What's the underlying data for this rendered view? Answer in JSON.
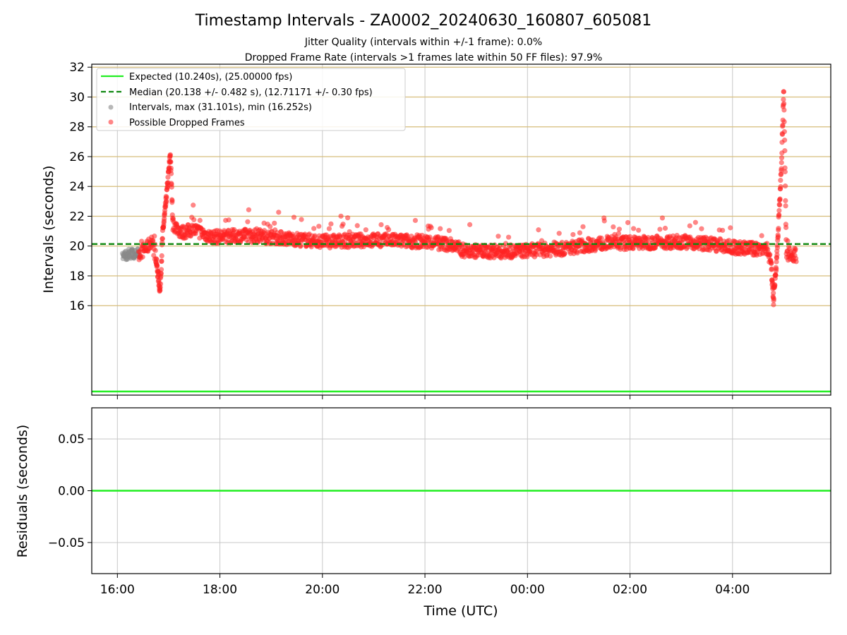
{
  "chart_data": {
    "type": "scatter",
    "title": "Timestamp Intervals - ZA0002_20240630_160807_605081",
    "subtitle_1": "Jitter Quality (intervals within +/-1 frame): 0.0%",
    "subtitle_2": "Dropped Frame Rate (intervals >1 frames late within 50 FF files): 97.9%",
    "xlabel": "Time (UTC)",
    "top_panel": {
      "ylabel": "Intervals (seconds)",
      "yticks": [
        "16",
        "18",
        "20",
        "22",
        "24",
        "26",
        "28",
        "30",
        "32"
      ],
      "ylim": [
        10.0,
        32.2
      ],
      "expected_interval": 10.24,
      "median_interval": 20.138,
      "grid": "horizontal-gold",
      "legend_position": "top-left",
      "legend": [
        {
          "label": "Expected (10.240s), (25.00000 fps)",
          "kind": "solid-line",
          "color": "#22ee22"
        },
        {
          "label": "Median (20.138 +/- 0.482 s), (12.71171 +/- 0.30 fps)",
          "kind": "dashed-line",
          "color": "#118811"
        },
        {
          "label": "Intervals, max (31.101s), min (16.252s)",
          "kind": "marker",
          "color": "#888888"
        },
        {
          "label": "Possible Dropped Frames",
          "kind": "marker",
          "color": "#ff2222"
        }
      ],
      "interval_series": {
        "name": "Intervals",
        "color": "#888888",
        "points": [
          [
            "16:07",
            19.3
          ],
          [
            "16:09",
            19.5
          ],
          [
            "16:11",
            19.2
          ],
          [
            "16:13",
            19.6
          ],
          [
            "16:15",
            19.4
          ],
          [
            "16:17",
            19.7
          ],
          [
            "16:19",
            19.3
          ],
          [
            "16:21",
            19.5
          ],
          [
            "16:23",
            19.6
          ],
          [
            "16:25",
            19.4
          ]
        ]
      },
      "dropped_series": {
        "name": "Possible Dropped Frames",
        "color": "#ff2222",
        "trend": [
          [
            "16:25",
            19.5
          ],
          [
            "16:35",
            19.9
          ],
          [
            "16:40",
            20.4
          ],
          [
            "16:45",
            19.2
          ],
          [
            "16:50",
            17.0
          ],
          [
            "16:53",
            20.8
          ],
          [
            "16:57",
            23.0
          ],
          [
            "17:02",
            26.2
          ],
          [
            "17:05",
            21.5
          ],
          [
            "17:15",
            20.9
          ],
          [
            "17:30",
            21.1
          ],
          [
            "17:50",
            20.6
          ],
          [
            "18:30",
            20.7
          ],
          [
            "19:00",
            20.6
          ],
          [
            "20:00",
            20.3
          ],
          [
            "21:00",
            20.4
          ],
          [
            "22:00",
            20.3
          ],
          [
            "22:30",
            20.1
          ],
          [
            "22:45",
            19.7
          ],
          [
            "23:30",
            19.6
          ],
          [
            "00:00",
            19.7
          ],
          [
            "00:40",
            19.8
          ],
          [
            "01:00",
            20.0
          ],
          [
            "01:30",
            20.2
          ],
          [
            "02:00",
            20.2
          ],
          [
            "03:00",
            20.3
          ],
          [
            "03:40",
            20.1
          ],
          [
            "04:00",
            19.9
          ],
          [
            "04:30",
            19.8
          ],
          [
            "04:40",
            19.9
          ],
          [
            "04:45",
            18.8
          ],
          [
            "04:48",
            16.4
          ],
          [
            "04:52",
            19.4
          ],
          [
            "04:57",
            25.0
          ],
          [
            "05:00",
            30.5
          ],
          [
            "05:03",
            19.5
          ],
          [
            "05:15",
            19.4
          ]
        ],
        "spread": 0.45
      }
    },
    "bottom_panel": {
      "ylabel": "Residuals (seconds)",
      "yticks": [
        "0.05",
        "0.00",
        "−0.05"
      ],
      "ylim": [
        -0.08,
        0.08
      ],
      "residual_line": 0.0,
      "grid": "both"
    },
    "x_axis": {
      "ticks": [
        "16:00",
        "18:00",
        "20:00",
        "22:00",
        "00:00",
        "02:00",
        "04:00"
      ],
      "xlim": [
        "15:30",
        "05:55"
      ]
    }
  }
}
